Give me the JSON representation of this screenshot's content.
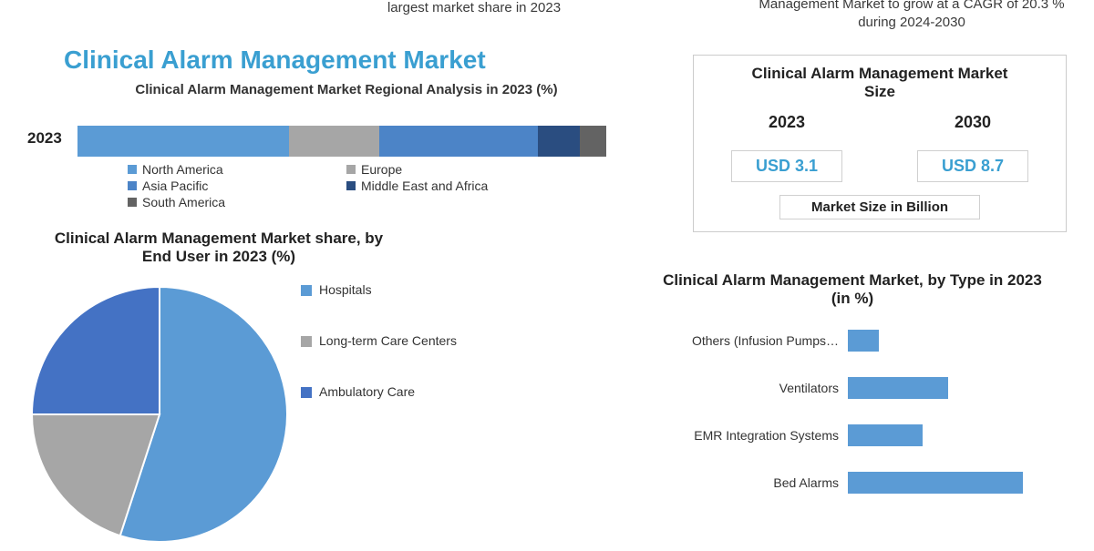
{
  "top_left_text": "largest market share in 2023",
  "top_right_text": "Management Market to grow at a CAGR of 20.3 % during 2024-2030",
  "main_title": "Clinical Alarm Management Market",
  "regional": {
    "title": "Clinical Alarm Management Market Regional Analysis in 2023 (%)",
    "year_label": "2023",
    "segments": [
      {
        "label": "North America",
        "value": 40,
        "color": "#5b9bd5"
      },
      {
        "label": "Europe",
        "value": 17,
        "color": "#a6a6a6"
      },
      {
        "label": "Asia Pacific",
        "value": 30,
        "color": "#4c84c7"
      },
      {
        "label": "Middle East and Africa",
        "value": 8,
        "color": "#2a4d80"
      },
      {
        "label": "South America",
        "value": 5,
        "color": "#636363"
      }
    ]
  },
  "pie": {
    "title": "Clinical Alarm Management Market share, by End User in 2023  (%)",
    "slices": [
      {
        "label": "Hospitals",
        "value": 55,
        "color": "#5b9bd5"
      },
      {
        "label": "Long-term Care Centers",
        "value": 20,
        "color": "#a6a6a6"
      },
      {
        "label": "Ambulatory Care",
        "value": 25,
        "color": "#4472c4"
      }
    ]
  },
  "size_box": {
    "title": "Clinical Alarm Management Market Size",
    "year1": "2023",
    "year2": "2030",
    "value1": "USD 3.1",
    "value2": "USD 8.7",
    "footer": "Market Size in Billion"
  },
  "type_chart": {
    "title": "Clinical Alarm Management Market, by Type in 2023 (in %)",
    "bar_color": "#5b9bd5",
    "max": 35,
    "items": [
      {
        "label": "Others (Infusion Pumps…",
        "value": 5
      },
      {
        "label": "Ventilators",
        "value": 16
      },
      {
        "label": "EMR Integration Systems",
        "value": 12
      },
      {
        "label": "Bed Alarms",
        "value": 28
      }
    ]
  },
  "colors": {
    "title_blue": "#3a9fd1",
    "text": "#333333",
    "border": "#cccccc"
  }
}
